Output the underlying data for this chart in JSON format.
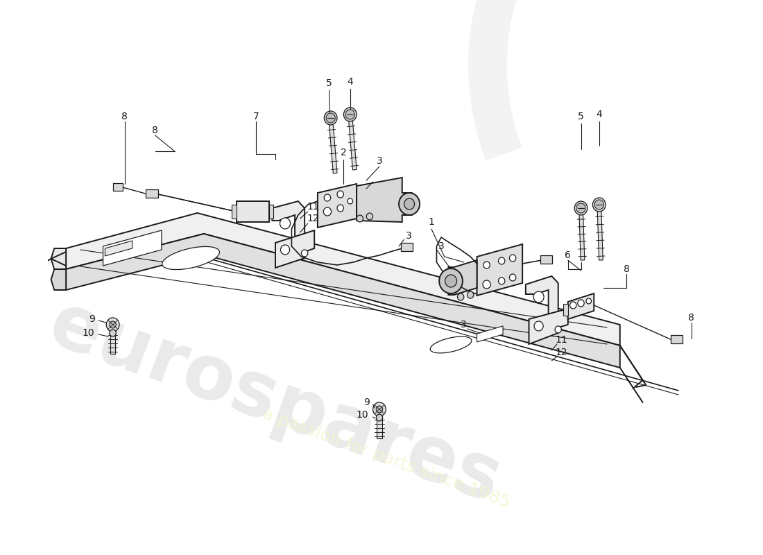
{
  "bg_color": "#ffffff",
  "line_color": "#1a1a1a",
  "label_color": "#1a1a1a",
  "watermark1": "eurospares",
  "watermark2": "a passion for parts since 1985",
  "figsize": [
    11.0,
    8.0
  ],
  "dpi": 100
}
